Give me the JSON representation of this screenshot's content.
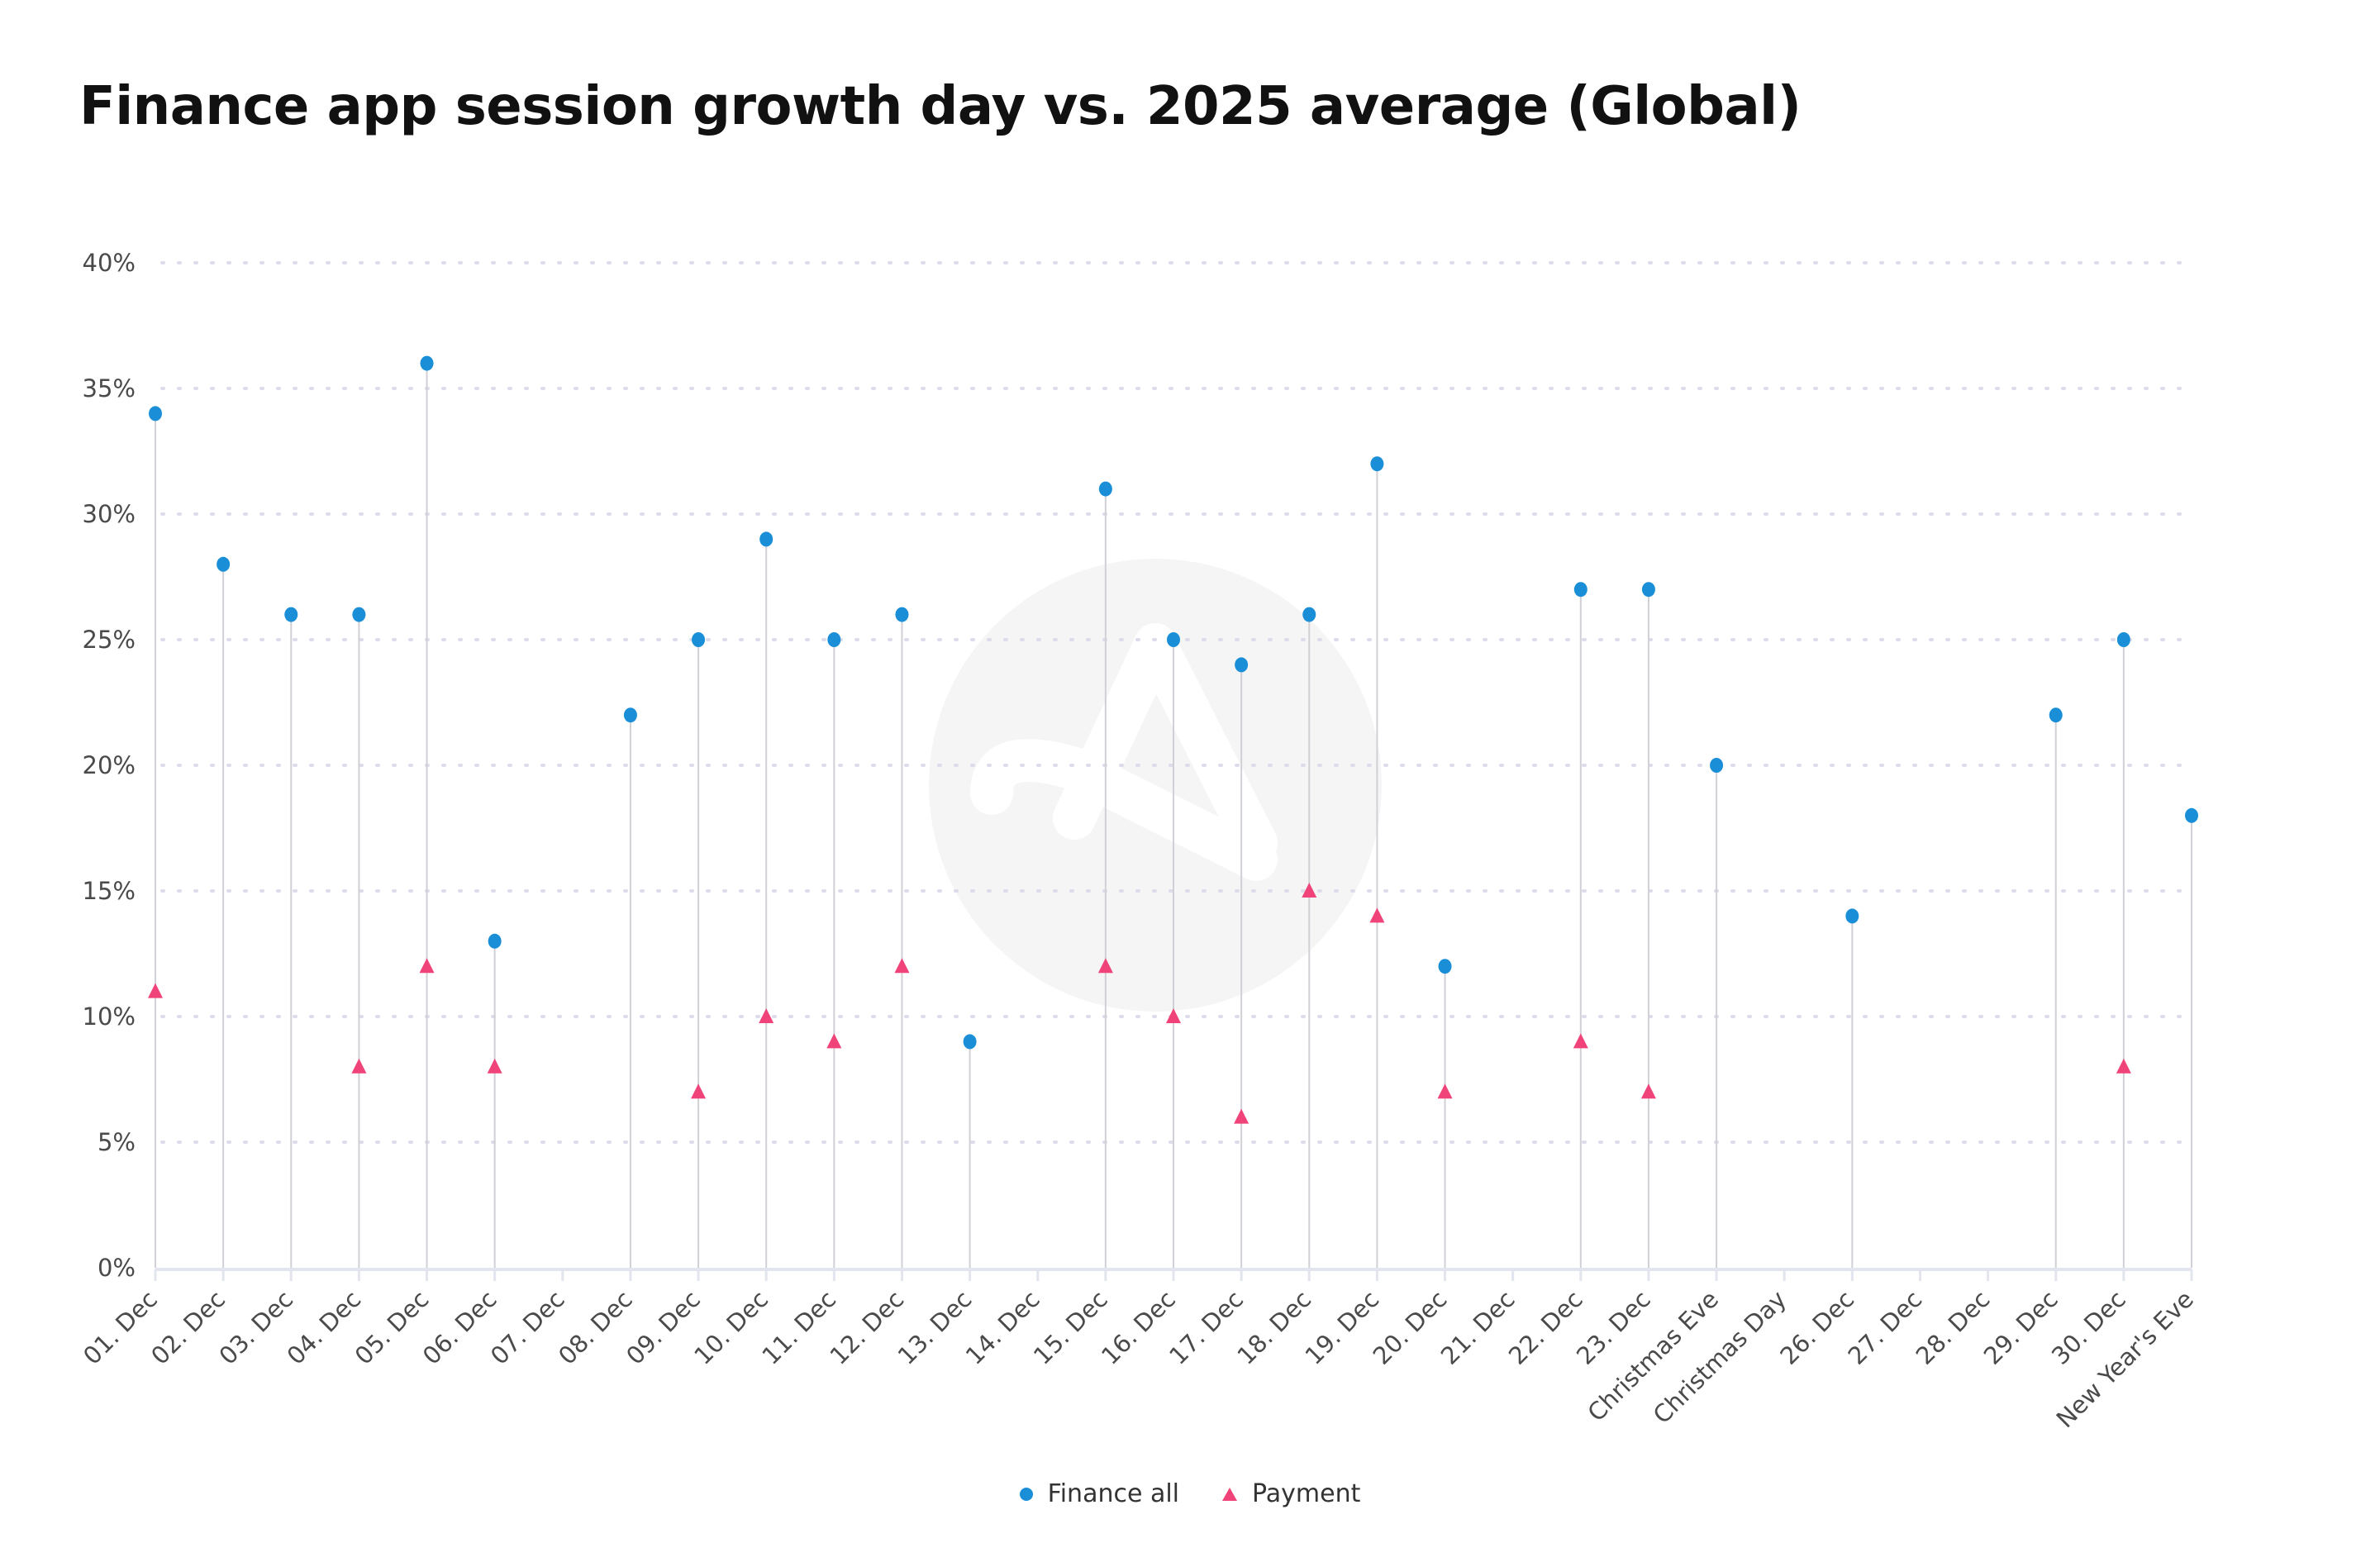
{
  "chart_data": {
    "type": "scatter",
    "subtype": "lollipop",
    "title": "Finance app session growth day vs. 2025 average (Global)",
    "xlabel": "",
    "ylabel": "",
    "ylim": [
      0,
      40
    ],
    "y_ticks": [
      "0%",
      "5%",
      "10%",
      "15%",
      "20%",
      "25%",
      "30%",
      "35%",
      "40%"
    ],
    "y_tick_values": [
      0,
      5,
      10,
      15,
      20,
      25,
      30,
      35,
      40
    ],
    "grid": "horizontal dotted",
    "legend_position": "bottom-center",
    "categories": [
      "01. Dec",
      "02. Dec",
      "03. Dec",
      "04. Dec",
      "05. Dec",
      "06. Dec",
      "07. Dec",
      "08. Dec",
      "09. Dec",
      "10. Dec",
      "11. Dec",
      "12. Dec",
      "13. Dec",
      "14. Dec",
      "15. Dec",
      "16. Dec",
      "17. Dec",
      "18. Dec",
      "19. Dec",
      "20. Dec",
      "21. Dec",
      "22. Dec",
      "23. Dec",
      "Christmas Eve",
      "Christmas Day",
      "26. Dec",
      "27. Dec",
      "28. Dec",
      "29. Dec",
      "30. Dec",
      "New Year's Eve"
    ],
    "series": [
      {
        "name": "Finance all",
        "marker": "circle",
        "color": "#1a8fd8",
        "values": [
          34,
          28,
          26,
          26,
          36,
          13,
          null,
          22,
          25,
          29,
          25,
          26,
          9,
          null,
          31,
          25,
          24,
          26,
          32,
          12,
          null,
          27,
          27,
          20,
          null,
          14,
          null,
          null,
          22,
          25,
          18
        ]
      },
      {
        "name": "Payment",
        "marker": "triangle",
        "color": "#f0437a",
        "values": [
          11,
          null,
          null,
          8,
          12,
          8,
          null,
          null,
          7,
          10,
          9,
          12,
          null,
          null,
          12,
          10,
          6,
          15,
          14,
          7,
          null,
          9,
          7,
          null,
          null,
          null,
          null,
          null,
          null,
          8,
          null
        ]
      }
    ]
  },
  "colors": {
    "stem": "#d0d0d6",
    "grid": "#dcdcea",
    "axis": "#e2e4ee",
    "watermark": "#f5f5f5"
  }
}
